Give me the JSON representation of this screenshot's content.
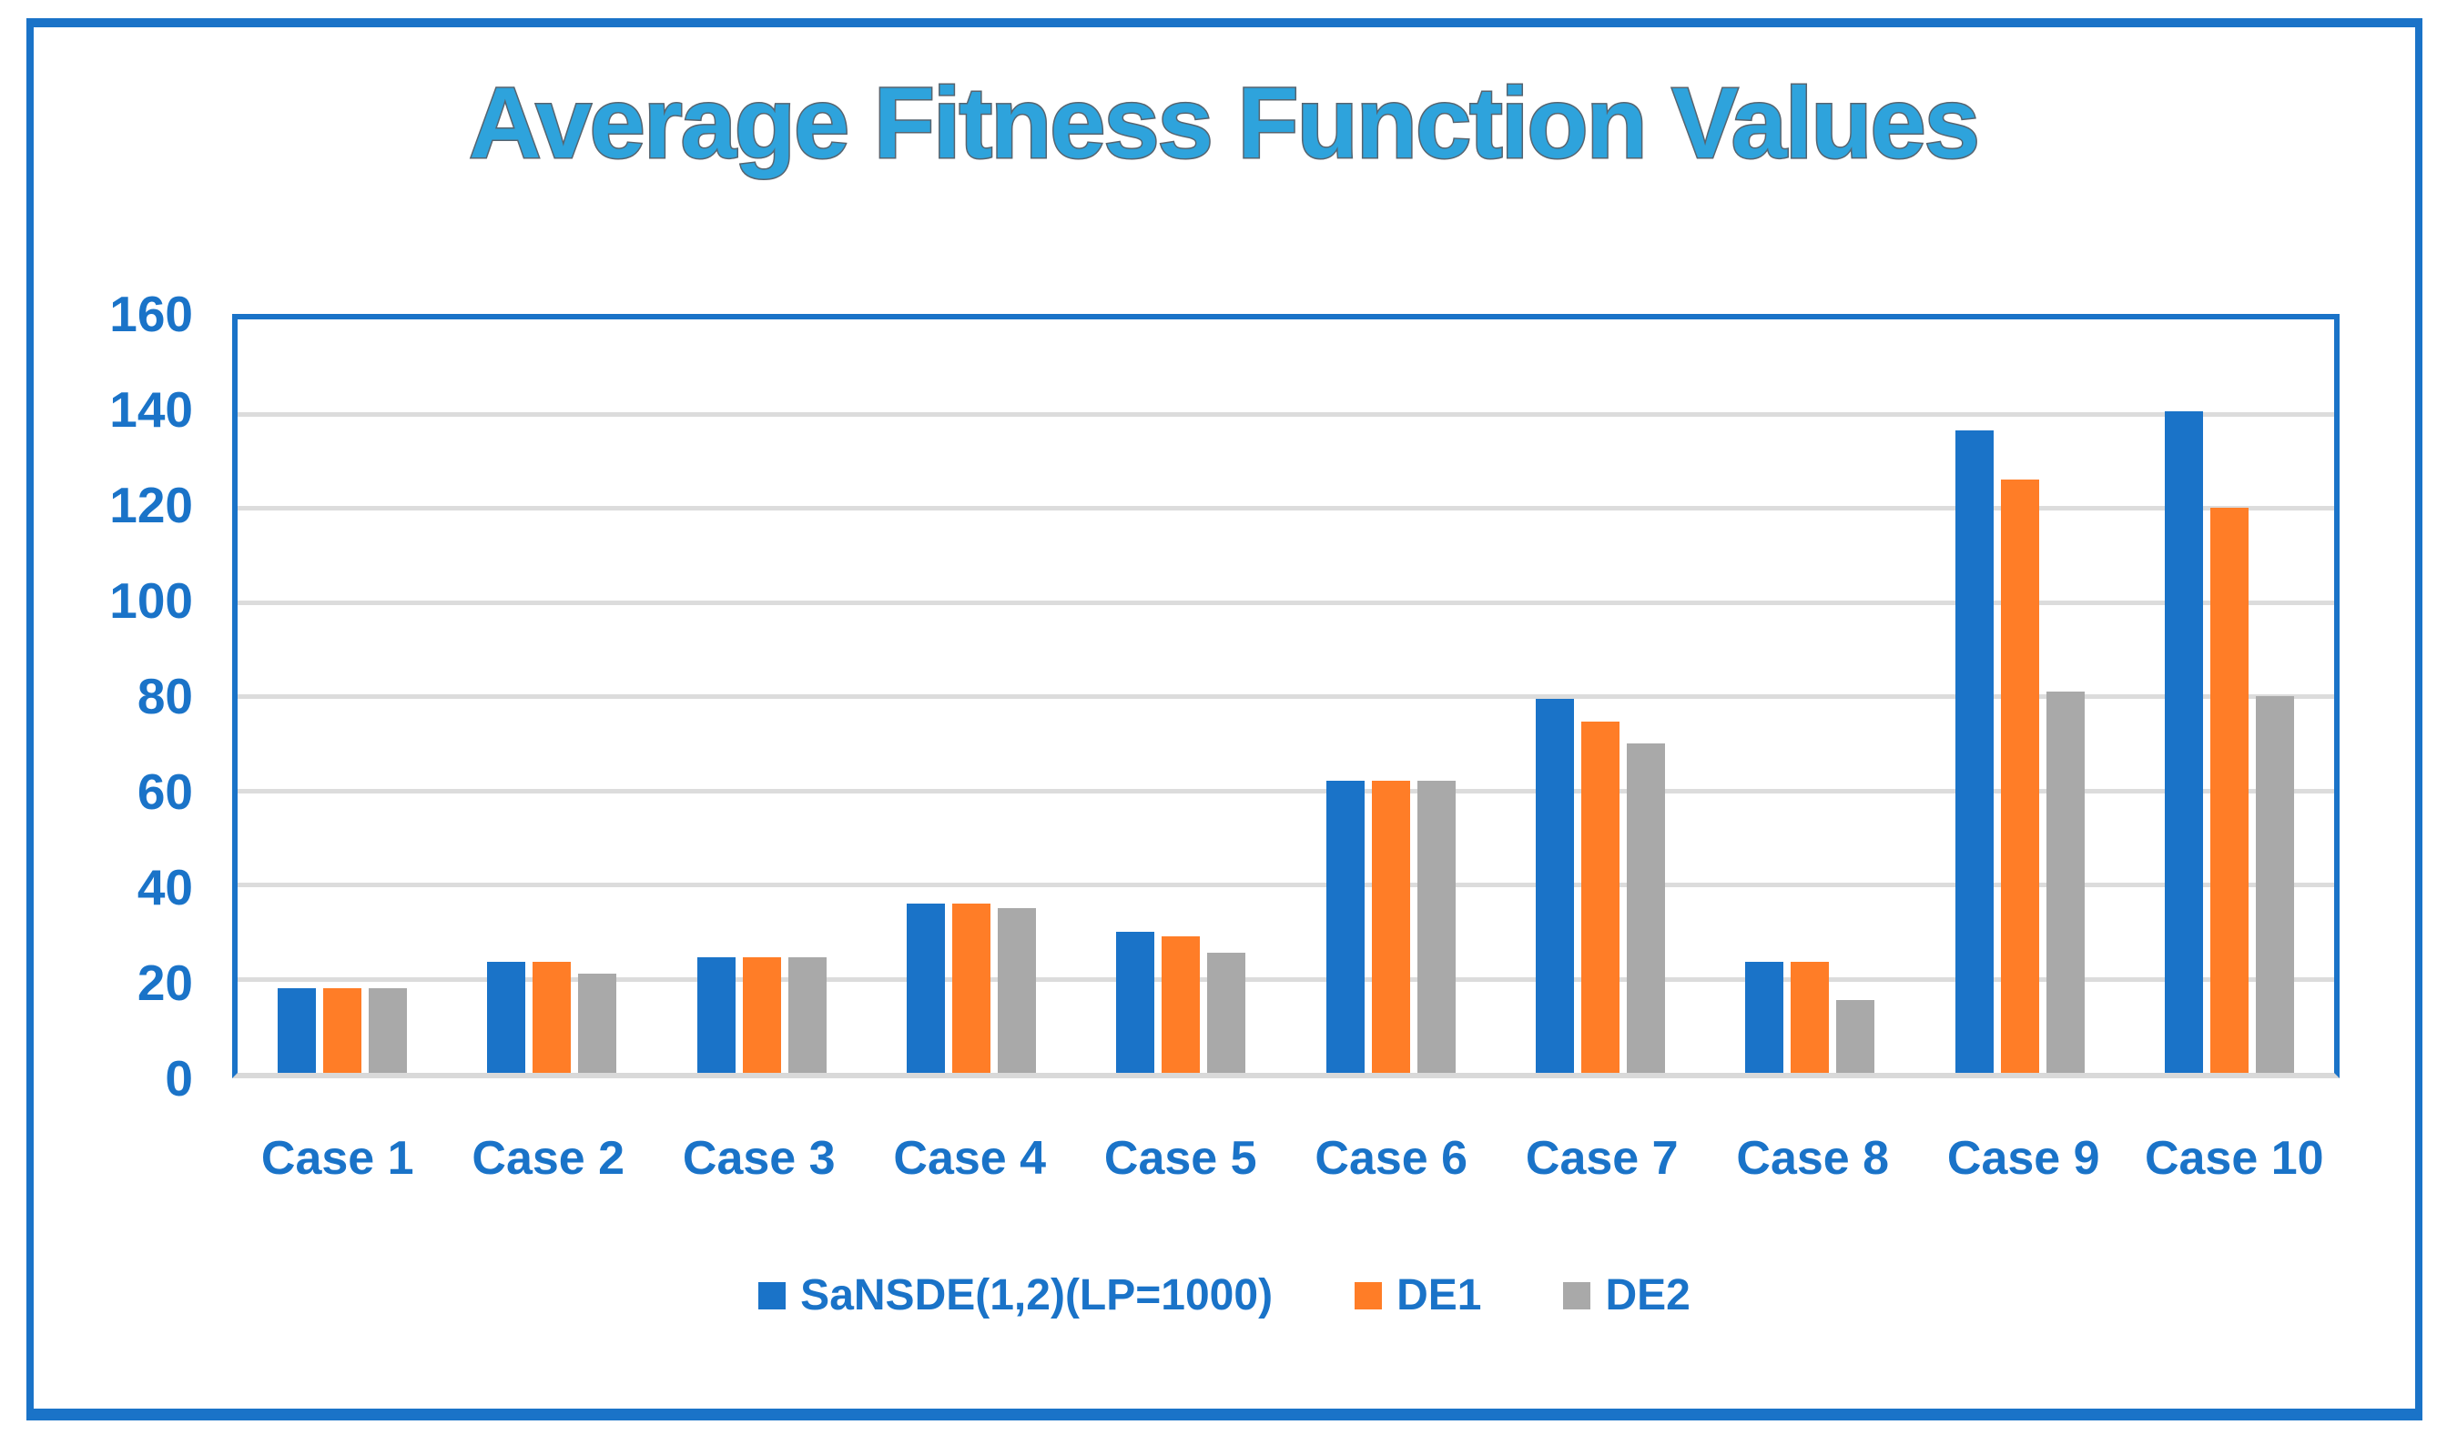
{
  "title": "Average Fitness Function Values",
  "colors": {
    "frame_blue": "#1A73C8",
    "series_blue": "#1A73C8",
    "series_orange": "#FF7D27",
    "series_gray": "#A9A9A9",
    "gridline": "#DCDCDC",
    "baseline": "#D9D9D9",
    "axis_label_blue": "#1A73C8",
    "title_fill": "#2EA3DC",
    "title_outline": "#57646F"
  },
  "y_axis": {
    "ticks": [
      0,
      20,
      40,
      60,
      80,
      100,
      120,
      140,
      160
    ]
  },
  "legend": {
    "items": [
      {
        "label": "SaNSDE(1,2)(LP=1000)",
        "color": "#1A73C8",
        "key": "sansde"
      },
      {
        "label": "DE1",
        "color": "#FF7D27",
        "key": "de1"
      },
      {
        "label": "DE2",
        "color": "#A9A9A9",
        "key": "de2"
      }
    ]
  },
  "chart_data": {
    "type": "bar",
    "title": "Average Fitness Function Values",
    "categories": [
      "Case 1",
      "Case 2",
      "Case 3",
      "Case 4",
      "Case 5",
      "Case 6",
      "Case 7",
      "Case 8",
      "Case 9",
      "Case 10"
    ],
    "series": [
      {
        "name": "SaNSDE(1,2)(LP=1000)",
        "color": "#1A73C8",
        "values": [
          18,
          23.5,
          24.5,
          36,
          30,
          62,
          79.5,
          23.5,
          136.5,
          140.5
        ]
      },
      {
        "name": "DE1",
        "color": "#FF7D27",
        "values": [
          18,
          23.5,
          24.5,
          36,
          29,
          62,
          74.5,
          23.5,
          126,
          120
        ]
      },
      {
        "name": "DE2",
        "color": "#A9A9A9",
        "values": [
          18,
          21,
          24.5,
          35,
          25.5,
          62,
          70,
          15.5,
          81,
          80
        ]
      }
    ],
    "xlabel": "",
    "ylabel": "",
    "ylim": [
      0,
      160
    ],
    "ytick_interval": 20,
    "grid": true,
    "legend_position": "bottom"
  }
}
